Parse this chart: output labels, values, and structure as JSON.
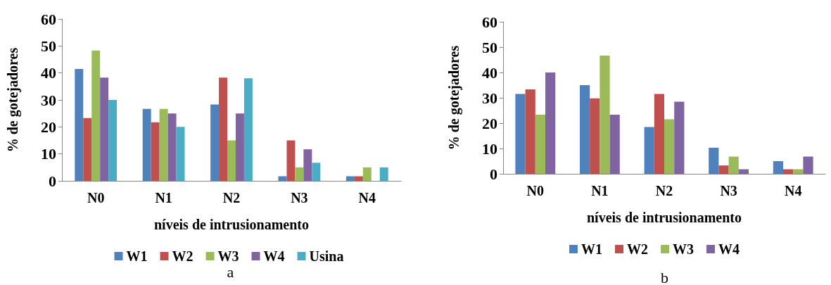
{
  "chart_data": [
    {
      "type": "bar",
      "xlabel": "níveis de intrusionamento",
      "ylabel": "% de gotejadores",
      "categories": [
        "N0",
        "N1",
        "N2",
        "N3",
        "N4"
      ],
      "series": [
        {
          "name": "W1",
          "color": "#4f81bd",
          "values": [
            41.5,
            26.7,
            28.3,
            1.7,
            1.7
          ]
        },
        {
          "name": "W2",
          "color": "#c0504d",
          "values": [
            23.3,
            21.7,
            38.3,
            15,
            1.7
          ]
        },
        {
          "name": "W3",
          "color": "#9bbb59",
          "values": [
            48.3,
            26.7,
            15,
            5,
            5
          ]
        },
        {
          "name": "W4",
          "color": "#8064a2",
          "values": [
            38.3,
            25,
            25,
            11.7,
            0
          ]
        },
        {
          "name": "Usina",
          "color": "#4bacc6",
          "values": [
            30,
            20,
            38,
            6.7,
            5
          ]
        }
      ],
      "ylim": [
        0,
        60
      ],
      "yticks": [
        0,
        10,
        20,
        30,
        40,
        50,
        60
      ],
      "grid": false,
      "legend": "bottom",
      "annotations": [
        "a"
      ]
    },
    {
      "type": "bar",
      "xlabel": "níveis de intrusionamento",
      "ylabel": "% de gotejadores",
      "categories": [
        "N0",
        "N1",
        "N2",
        "N3",
        "N4"
      ],
      "series": [
        {
          "name": "W1",
          "color": "#4f81bd",
          "values": [
            31.5,
            35,
            18.5,
            10.3,
            5
          ]
        },
        {
          "name": "W2",
          "color": "#c0504d",
          "values": [
            33.3,
            29.8,
            31.5,
            3.3,
            1.8
          ]
        },
        {
          "name": "W3",
          "color": "#9bbb59",
          "values": [
            23.3,
            46.7,
            21.5,
            6.8,
            1.8
          ]
        },
        {
          "name": "W4",
          "color": "#8064a2",
          "values": [
            40,
            23.3,
            28.5,
            1.8,
            6.8
          ]
        }
      ],
      "ylim": [
        0,
        60
      ],
      "yticks": [
        0,
        10,
        20,
        30,
        40,
        50,
        60
      ],
      "grid": false,
      "legend": "bottom",
      "annotations": [
        "b"
      ]
    }
  ]
}
